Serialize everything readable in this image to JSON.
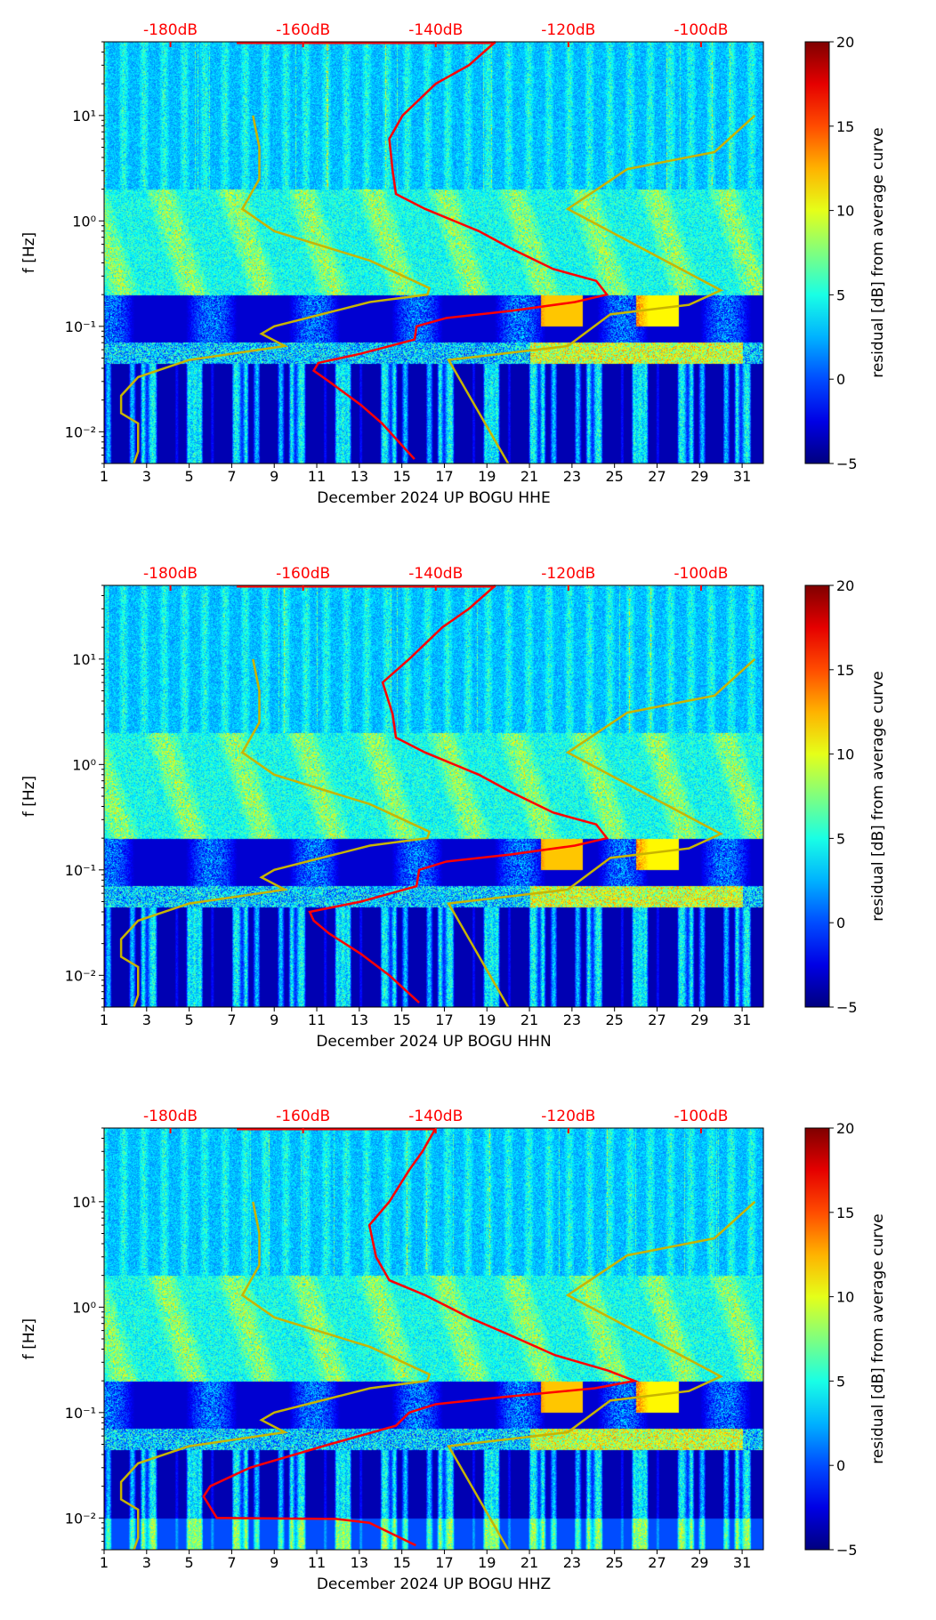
{
  "chart_data": [
    {
      "type": "heatmap",
      "title": "",
      "xlabel": "December 2024 UP BOGU  HHE",
      "ylabel": "f [Hz]",
      "xlim": [
        1,
        32
      ],
      "ylim": [
        0.005,
        50
      ],
      "yscale": "log",
      "xticks": [
        "1",
        "3",
        "5",
        "7",
        "9",
        "11",
        "13",
        "15",
        "17",
        "19",
        "21",
        "23",
        "25",
        "27",
        "29",
        "31"
      ],
      "yticks": [
        {
          "value": 0.01,
          "label": "10⁻²"
        },
        {
          "value": 0.1,
          "label": "10⁻¹"
        },
        {
          "value": 1,
          "label": "10⁰"
        },
        {
          "value": 10,
          "label": "10¹"
        }
      ],
      "top_axis": {
        "labels": [
          "-180dB",
          "-160dB",
          "-140dB",
          "-120dB",
          "-100dB"
        ],
        "values": [
          -180,
          -160,
          -140,
          -120,
          -100
        ],
        "range": [
          -190,
          -90.6
        ]
      },
      "colorbar": {
        "label": "residual [dB] from average curve",
        "ticks": [
          "20",
          "15",
          "10",
          "5",
          "0",
          "−5"
        ],
        "range": [
          -5,
          20
        ],
        "colormap": "jet"
      },
      "red_curve_db": [
        [
          -131,
          50
        ],
        [
          -135,
          30
        ],
        [
          -140,
          20
        ],
        [
          -145,
          10
        ],
        [
          -147,
          6
        ],
        [
          -146.5,
          3
        ],
        [
          -146,
          1.8
        ],
        [
          -141.6,
          1.3
        ],
        [
          -133.5,
          0.8
        ],
        [
          -128.7,
          0.55
        ],
        [
          -122.3,
          0.35
        ],
        [
          -115.8,
          0.27
        ],
        [
          -114.2,
          0.2
        ],
        [
          -119,
          0.17
        ],
        [
          -128.7,
          0.14
        ],
        [
          -138.4,
          0.12
        ],
        [
          -142.9,
          0.1
        ],
        [
          -143.2,
          0.075
        ],
        [
          -151.3,
          0.055
        ],
        [
          -157.7,
          0.045
        ],
        [
          -158.4,
          0.038
        ],
        [
          -156.1,
          0.03
        ],
        [
          -151.3,
          0.018
        ],
        [
          -148.1,
          0.012
        ],
        [
          -143.2,
          0.0055
        ]
      ],
      "yellow_curves_day": [
        [
          [
            8,
            10
          ],
          [
            8.3,
            5
          ],
          [
            8.3,
            2.5
          ],
          [
            7.5,
            1.3
          ],
          [
            9,
            0.8
          ],
          [
            13.5,
            0.42
          ],
          [
            16.3,
            0.23
          ],
          [
            16.2,
            0.2
          ],
          [
            13.5,
            0.17
          ],
          [
            9,
            0.1
          ],
          [
            8.4,
            0.085
          ],
          [
            9.5,
            0.065
          ],
          [
            5,
            0.048
          ],
          [
            2.6,
            0.033
          ],
          [
            1.8,
            0.022
          ],
          [
            1.8,
            0.015
          ],
          [
            2.6,
            0.012
          ],
          [
            2.6,
            0.0065
          ],
          [
            2.4,
            0.005
          ]
        ],
        [
          [
            20,
            0.005
          ],
          [
            17.2,
            0.048
          ],
          [
            22.8,
            0.065
          ],
          [
            24.8,
            0.13
          ],
          [
            28.5,
            0.16
          ],
          [
            30,
            0.22
          ],
          [
            22.8,
            1.3
          ],
          [
            25.6,
            3.1
          ],
          [
            29.7,
            4.5
          ],
          [
            31.6,
            10
          ]
        ]
      ]
    },
    {
      "type": "heatmap",
      "title": "",
      "xlabel": "December 2024 UP BOGU  HHN",
      "ylabel": "f [Hz]",
      "xlim": [
        1,
        32
      ],
      "ylim": [
        0.005,
        50
      ],
      "yscale": "log",
      "xticks": [
        "1",
        "3",
        "5",
        "7",
        "9",
        "11",
        "13",
        "15",
        "17",
        "19",
        "21",
        "23",
        "25",
        "27",
        "29",
        "31"
      ],
      "yticks": [
        {
          "value": 0.01,
          "label": "10⁻²"
        },
        {
          "value": 0.1,
          "label": "10⁻¹"
        },
        {
          "value": 1,
          "label": "10⁰"
        },
        {
          "value": 10,
          "label": "10¹"
        }
      ],
      "top_axis": {
        "labels": [
          "-180dB",
          "-160dB",
          "-140dB",
          "-120dB",
          "-100dB"
        ],
        "values": [
          -180,
          -160,
          -140,
          -120,
          -100
        ],
        "range": [
          -190,
          -90.6
        ]
      },
      "colorbar": {
        "label": "residual [dB] from average curve",
        "ticks": [
          "20",
          "15",
          "10",
          "5",
          "0",
          "−5"
        ],
        "range": [
          -5,
          20
        ],
        "colormap": "jet"
      },
      "red_curve_db": [
        [
          -131,
          50
        ],
        [
          -135,
          30
        ],
        [
          -139,
          20
        ],
        [
          -144,
          10
        ],
        [
          -148,
          6
        ],
        [
          -146.5,
          3
        ],
        [
          -146,
          1.8
        ],
        [
          -141.6,
          1.3
        ],
        [
          -133.5,
          0.8
        ],
        [
          -128.7,
          0.55
        ],
        [
          -122.3,
          0.35
        ],
        [
          -115.8,
          0.27
        ],
        [
          -114.2,
          0.2
        ],
        [
          -119,
          0.17
        ],
        [
          -128.7,
          0.14
        ],
        [
          -138.4,
          0.12
        ],
        [
          -142.5,
          0.1
        ],
        [
          -142.9,
          0.07
        ],
        [
          -151.3,
          0.05
        ],
        [
          -159,
          0.04
        ],
        [
          -158.4,
          0.033
        ],
        [
          -156.1,
          0.025
        ],
        [
          -151.3,
          0.016
        ],
        [
          -147,
          0.01
        ],
        [
          -142.5,
          0.0055
        ]
      ],
      "yellow_curves_day": [
        [
          [
            8,
            10
          ],
          [
            8.3,
            5
          ],
          [
            8.3,
            2.5
          ],
          [
            7.5,
            1.3
          ],
          [
            9,
            0.8
          ],
          [
            13.5,
            0.42
          ],
          [
            16.3,
            0.23
          ],
          [
            16.2,
            0.2
          ],
          [
            13.5,
            0.17
          ],
          [
            9,
            0.1
          ],
          [
            8.4,
            0.085
          ],
          [
            9.5,
            0.065
          ],
          [
            5,
            0.048
          ],
          [
            2.6,
            0.033
          ],
          [
            1.8,
            0.022
          ],
          [
            1.8,
            0.015
          ],
          [
            2.6,
            0.012
          ],
          [
            2.6,
            0.0065
          ],
          [
            2.4,
            0.005
          ]
        ],
        [
          [
            20,
            0.005
          ],
          [
            17.2,
            0.048
          ],
          [
            22.8,
            0.065
          ],
          [
            24.8,
            0.13
          ],
          [
            28.5,
            0.16
          ],
          [
            30,
            0.22
          ],
          [
            22.8,
            1.3
          ],
          [
            25.6,
            3.1
          ],
          [
            29.7,
            4.5
          ],
          [
            31.6,
            10
          ]
        ]
      ]
    },
    {
      "type": "heatmap",
      "title": "",
      "xlabel": "December 2024 UP BOGU  HHZ",
      "ylabel": "f [Hz]",
      "xlim": [
        1,
        32
      ],
      "ylim": [
        0.005,
        50
      ],
      "yscale": "log",
      "xticks": [
        "1",
        "3",
        "5",
        "7",
        "9",
        "11",
        "13",
        "15",
        "17",
        "19",
        "21",
        "23",
        "25",
        "27",
        "29",
        "31"
      ],
      "yticks": [
        {
          "value": 0.01,
          "label": "10⁻²"
        },
        {
          "value": 0.1,
          "label": "10⁻¹"
        },
        {
          "value": 1,
          "label": "10⁰"
        },
        {
          "value": 10,
          "label": "10¹"
        }
      ],
      "top_axis": {
        "labels": [
          "-180dB",
          "-160dB",
          "-140dB",
          "-120dB",
          "-100dB"
        ],
        "values": [
          -180,
          -160,
          -140,
          -120,
          -100
        ],
        "range": [
          -190,
          -90.6
        ]
      },
      "colorbar": {
        "label": "residual [dB] from average curve",
        "ticks": [
          "20",
          "15",
          "10",
          "5",
          "0",
          "−5"
        ],
        "range": [
          -5,
          20
        ],
        "colormap": "jet"
      },
      "red_curve_db": [
        [
          -140,
          50
        ],
        [
          -142,
          30
        ],
        [
          -144,
          20
        ],
        [
          -147,
          10
        ],
        [
          -150,
          6
        ],
        [
          -149,
          3
        ],
        [
          -147,
          1.8
        ],
        [
          -141.6,
          1.3
        ],
        [
          -135,
          0.8
        ],
        [
          -129,
          0.55
        ],
        [
          -122,
          0.35
        ],
        [
          -114,
          0.25
        ],
        [
          -110,
          0.2
        ],
        [
          -116,
          0.17
        ],
        [
          -130,
          0.14
        ],
        [
          -140,
          0.12
        ],
        [
          -144,
          0.1
        ],
        [
          -146,
          0.075
        ],
        [
          -156,
          0.05
        ],
        [
          -168,
          0.03
        ],
        [
          -174,
          0.02
        ],
        [
          -175,
          0.016
        ],
        [
          -173,
          0.01
        ],
        [
          -155,
          0.0098
        ],
        [
          -150,
          0.009
        ],
        [
          -143,
          0.0055
        ]
      ],
      "yellow_curves_day": [
        [
          [
            8,
            10
          ],
          [
            8.3,
            5
          ],
          [
            8.3,
            2.5
          ],
          [
            7.5,
            1.3
          ],
          [
            9,
            0.8
          ],
          [
            13.5,
            0.42
          ],
          [
            16.3,
            0.23
          ],
          [
            16.2,
            0.2
          ],
          [
            13.5,
            0.17
          ],
          [
            9,
            0.1
          ],
          [
            8.4,
            0.085
          ],
          [
            9.5,
            0.065
          ],
          [
            5,
            0.048
          ],
          [
            2.6,
            0.033
          ],
          [
            1.8,
            0.022
          ],
          [
            1.8,
            0.015
          ],
          [
            2.6,
            0.012
          ],
          [
            2.6,
            0.0065
          ],
          [
            2.4,
            0.005
          ]
        ],
        [
          [
            20,
            0.005
          ],
          [
            17.2,
            0.048
          ],
          [
            22.8,
            0.065
          ],
          [
            24.8,
            0.13
          ],
          [
            28.5,
            0.16
          ],
          [
            30,
            0.22
          ],
          [
            22.8,
            1.3
          ],
          [
            25.6,
            3.1
          ],
          [
            29.7,
            4.5
          ],
          [
            31.6,
            10
          ]
        ]
      ]
    }
  ],
  "colors": {
    "red_curve": "#ff0000",
    "yellow_curve": "#c8b400",
    "top_labels": "#ff0000"
  }
}
